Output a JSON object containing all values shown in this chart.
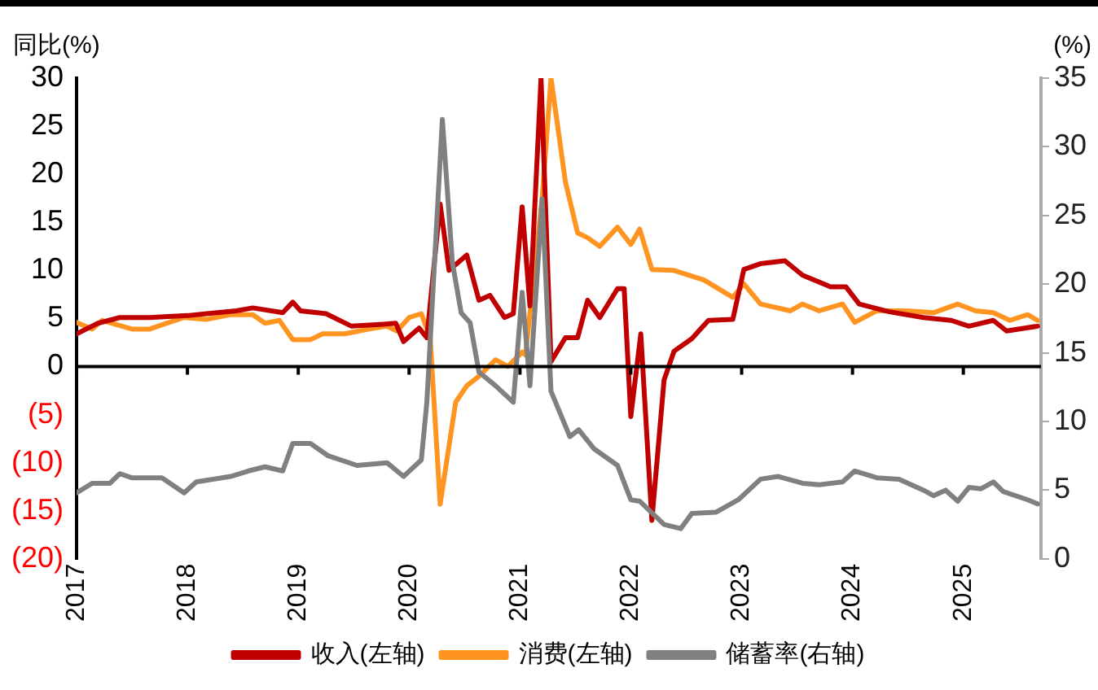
{
  "chart_data": {
    "type": "line",
    "ylabel": "同比(%)",
    "y2label": "(%)",
    "xlim": [
      2017,
      2025.7
    ],
    "xticks": [
      2017,
      2018,
      2019,
      2020,
      2021,
      2022,
      2023,
      2024,
      2025
    ],
    "ylim": [
      -20,
      30
    ],
    "yticks": [
      {
        "value": -20,
        "label": "(20)"
      },
      {
        "value": -15,
        "label": "(15)"
      },
      {
        "value": -10,
        "label": "(10)"
      },
      {
        "value": -5,
        "label": "(5)"
      },
      0,
      5,
      10,
      15,
      20,
      25,
      30
    ],
    "y2lim": [
      0,
      35
    ],
    "y2ticks": [
      0,
      5,
      10,
      15,
      20,
      25,
      30,
      35
    ],
    "ref_lines": [
      {
        "axis": "y",
        "value": 0,
        "color": "#000000"
      }
    ],
    "grid": false,
    "legend": "bottom",
    "marker": "none",
    "line_style": "solid",
    "series": [
      {
        "name": "收入(左轴)",
        "color": "#c00000",
        "x": [
          2017.0,
          2017.19,
          2017.39,
          2017.66,
          2018.0,
          2018.44,
          2018.59,
          2018.86,
          2018.95,
          2019.02,
          2019.25,
          2019.48,
          2019.77,
          2019.88,
          2019.95,
          2020.09,
          2020.16,
          2020.28,
          2020.36,
          2020.52,
          2020.63,
          2020.73,
          2020.86,
          2020.94,
          2021.02,
          2021.09,
          2021.19,
          2021.28,
          2021.41,
          2021.52,
          2021.61,
          2021.72,
          2021.88,
          2021.94,
          2022.0,
          2022.09,
          2022.19,
          2022.3,
          2022.39,
          2022.55,
          2022.7,
          2022.92,
          2023.02,
          2023.17,
          2023.39,
          2023.55,
          2023.8,
          2023.94,
          2024.06,
          2024.33,
          2024.64,
          2024.89,
          2025.05,
          2025.27,
          2025.39,
          2025.67
        ],
        "values": [
          3.4,
          4.5,
          5.1,
          5.1,
          5.3,
          5.8,
          6.1,
          5.6,
          6.7,
          5.8,
          5.5,
          4.2,
          4.4,
          4.5,
          2.6,
          4.0,
          3.0,
          16.9,
          10.0,
          11.6,
          6.9,
          7.4,
          5.1,
          5.5,
          16.6,
          6.3,
          30,
          0.5,
          3.0,
          3.0,
          6.9,
          5.1,
          8.1,
          8.1,
          -5.2,
          3.4,
          -16.0,
          -1.4,
          1.6,
          2.9,
          4.8,
          4.9,
          10.1,
          10.7,
          11.0,
          9.5,
          8.3,
          8.3,
          6.5,
          5.7,
          5.1,
          4.8,
          4.2,
          4.8,
          3.7,
          4.2
        ]
      },
      {
        "name": "消费(左轴)",
        "color": "#ff9420",
        "x": [
          2017.0,
          2017.14,
          2017.23,
          2017.5,
          2017.66,
          2017.81,
          2017.97,
          2018.17,
          2018.39,
          2018.59,
          2018.7,
          2018.83,
          2018.95,
          2019.11,
          2019.22,
          2019.42,
          2019.64,
          2019.8,
          2019.89,
          2020.0,
          2020.11,
          2020.19,
          2020.28,
          2020.42,
          2020.52,
          2020.63,
          2020.78,
          2020.89,
          2021.02,
          2021.05,
          2021.2,
          2021.28,
          2021.41,
          2021.52,
          2021.61,
          2021.72,
          2021.88,
          2022.0,
          2022.08,
          2022.19,
          2022.39,
          2022.66,
          2022.92,
          2023.02,
          2023.17,
          2023.44,
          2023.55,
          2023.7,
          2023.91,
          2024.02,
          2024.22,
          2024.48,
          2024.73,
          2024.95,
          2025.11,
          2025.27,
          2025.42,
          2025.58,
          2025.67
        ],
        "values": [
          4.6,
          3.9,
          4.8,
          3.9,
          3.9,
          4.5,
          5.1,
          4.9,
          5.4,
          5.4,
          4.5,
          4.8,
          2.8,
          2.8,
          3.4,
          3.4,
          3.9,
          4.2,
          3.7,
          5.1,
          5.5,
          3.0,
          -14.3,
          -3.7,
          -2.0,
          -1.0,
          0.7,
          0,
          1.5,
          1.2,
          17.5,
          30,
          19.2,
          13.9,
          13.4,
          12.5,
          14.5,
          12.7,
          14.3,
          10.1,
          10.0,
          9.0,
          7.2,
          8.6,
          6.5,
          5.8,
          6.5,
          5.8,
          6.5,
          4.6,
          5.8,
          5.8,
          5.6,
          6.5,
          5.8,
          5.6,
          4.8,
          5.4,
          4.8
        ]
      },
      {
        "name": "储蓄率(右轴)",
        "color": "#808080",
        "axis": "y2",
        "x": [
          2017.0,
          2017.14,
          2017.3,
          2017.39,
          2017.5,
          2017.77,
          2017.97,
          2018.08,
          2018.39,
          2018.55,
          2018.7,
          2018.86,
          2018.95,
          2019.11,
          2019.27,
          2019.53,
          2019.8,
          2019.95,
          2020.11,
          2020.16,
          2020.3,
          2020.39,
          2020.47,
          2020.55,
          2020.63,
          2020.78,
          2020.94,
          2021.02,
          2021.09,
          2021.2,
          2021.28,
          2021.45,
          2021.53,
          2021.67,
          2021.88,
          2022.0,
          2022.08,
          2022.3,
          2022.45,
          2022.55,
          2022.77,
          2022.97,
          2023.17,
          2023.33,
          2023.55,
          2023.7,
          2023.91,
          2024.02,
          2024.22,
          2024.42,
          2024.64,
          2024.73,
          2024.84,
          2024.95,
          2025.05,
          2025.16,
          2025.27,
          2025.36,
          2025.58,
          2025.67
        ],
        "values": [
          4.8,
          5.5,
          5.5,
          6.2,
          5.9,
          5.9,
          4.8,
          5.6,
          6.0,
          6.4,
          6.7,
          6.4,
          8.4,
          8.4,
          7.5,
          6.8,
          7.0,
          6.0,
          7.2,
          11.4,
          32.0,
          21.6,
          17.9,
          17.2,
          13.6,
          12.6,
          11.4,
          19.4,
          12.6,
          26.2,
          12.2,
          8.9,
          9.4,
          8.0,
          6.8,
          4.3,
          4.2,
          2.5,
          2.2,
          3.3,
          3.4,
          4.3,
          5.8,
          6.0,
          5.5,
          5.4,
          5.6,
          6.4,
          5.9,
          5.8,
          5.0,
          4.6,
          5.0,
          4.2,
          5.2,
          5.1,
          5.6,
          4.9,
          4.3,
          4.0
        ]
      }
    ]
  }
}
